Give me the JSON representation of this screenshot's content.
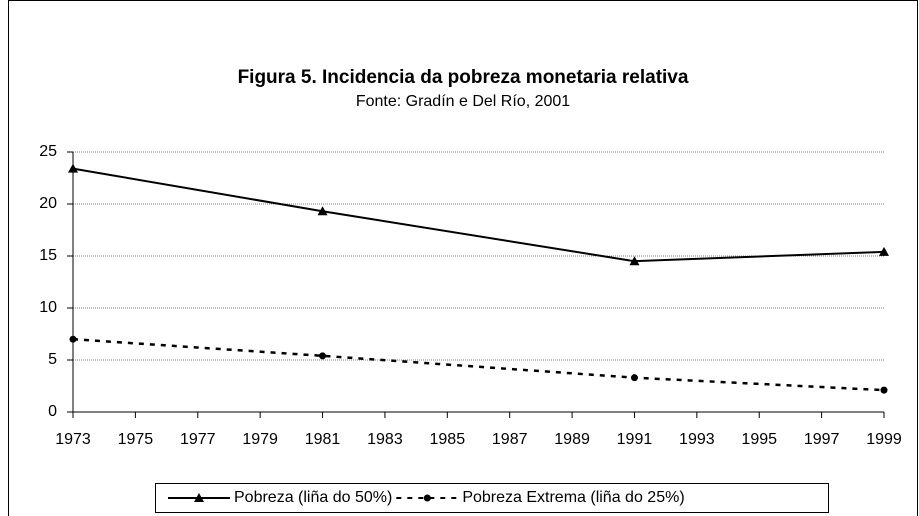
{
  "chart_data": {
    "type": "line",
    "title": "Figura 5. Incidencia da pobreza monetaria relativa",
    "subtitle": "Fonte: Gradín e Del Río, 2001",
    "x": [
      1973,
      1981,
      1991,
      1999
    ],
    "series": [
      {
        "name": "Pobreza (liña do 50%)",
        "color": "#000000",
        "linestyle": "solid",
        "marker": "triangle",
        "values": [
          23.4,
          19.3,
          14.5,
          15.4
        ]
      },
      {
        "name": "Pobreza Extrema (liña do 25%)",
        "color": "#000000",
        "linestyle": "dashed",
        "marker": "circle",
        "values": [
          7.0,
          5.4,
          3.3,
          2.1
        ]
      }
    ],
    "xlim": [
      1973,
      1999
    ],
    "xticks": [
      1973,
      1975,
      1977,
      1979,
      1981,
      1983,
      1985,
      1987,
      1989,
      1991,
      1993,
      1995,
      1997,
      1999
    ],
    "ylim": [
      0,
      25
    ],
    "yticks": [
      0,
      5,
      10,
      15,
      20,
      25
    ],
    "grid": true,
    "legend": "bottom"
  }
}
